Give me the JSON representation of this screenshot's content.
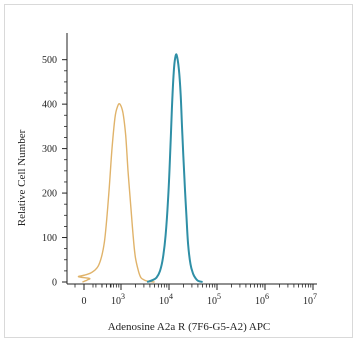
{
  "chart_data": {
    "type": "line",
    "xlabel": "Adenosine A2a R (7F6-G5-A2) APC",
    "ylabel": "Relative Cell Number",
    "x_scale": "biexponential",
    "x_ticks": [
      {
        "value": 0,
        "label": "0"
      },
      {
        "value": 1000,
        "label": "10",
        "exp": "3"
      },
      {
        "value": 10000,
        "label": "10",
        "exp": "4"
      },
      {
        "value": 100000,
        "label": "10",
        "exp": "5"
      },
      {
        "value": 1000000,
        "label": "10",
        "exp": "6"
      },
      {
        "value": 10000000,
        "label": "10",
        "exp": "7"
      }
    ],
    "y_ticks": [
      "0",
      "100",
      "200",
      "300",
      "400",
      "500"
    ],
    "ylim": [
      0,
      560
    ],
    "grid": false,
    "legend": "none",
    "series": [
      {
        "color": "#e0b36a",
        "x": [
          -40,
          30,
          60,
          90,
          130,
          180,
          250,
          350,
          450,
          550,
          650,
          750,
          850,
          950,
          1100,
          1250,
          1400,
          1600,
          1800,
          2000,
          2300,
          2600,
          3000,
          3500,
          4000,
          5000
        ],
        "values": [
          0,
          3,
          5,
          8,
          12,
          16,
          22,
          40,
          90,
          190,
          300,
          370,
          395,
          400,
          380,
          330,
          250,
          170,
          100,
          55,
          25,
          10,
          5,
          2,
          1,
          0
        ]
      },
      {
        "color": "#2f8fa6",
        "x": [
          3500,
          4500,
          5500,
          6500,
          7500,
          8500,
          9500,
          10500,
          11500,
          12500,
          13500,
          14500,
          16000,
          17500,
          19000,
          21000,
          23000,
          25000,
          28000,
          32000,
          36000,
          40000,
          50000
        ],
        "values": [
          0,
          4,
          10,
          25,
          55,
          105,
          180,
          280,
          390,
          470,
          505,
          510,
          480,
          420,
          330,
          230,
          150,
          85,
          40,
          18,
          8,
          3,
          0
        ]
      }
    ]
  }
}
